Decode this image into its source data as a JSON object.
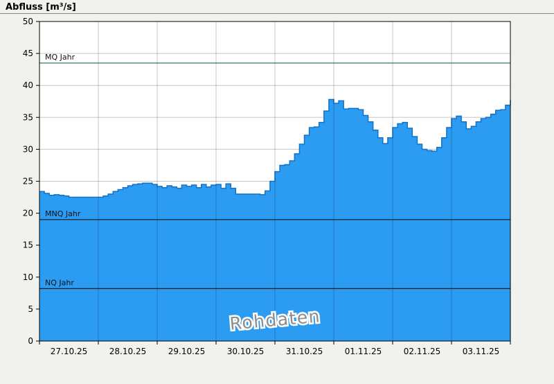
{
  "title": "Abfluss [m³/s]",
  "watermark": "Rohdaten",
  "chart_data": {
    "type": "area",
    "title": "Abfluss [m³/s]",
    "xlabel": "",
    "ylabel": "Abfluss [m³/s]",
    "ylim": [
      0,
      50
    ],
    "ytick_step": 5,
    "grid": true,
    "x_days": 8,
    "sample_interval_hours": 2,
    "categories": [
      "27.10.25",
      "28.10.25",
      "29.10.25",
      "30.10.25",
      "31.10.25",
      "01.11.25",
      "02.11.25",
      "03.11.25"
    ],
    "values": [
      23.4,
      23.1,
      22.8,
      22.9,
      22.8,
      22.7,
      22.5,
      22.5,
      22.5,
      22.5,
      22.5,
      22.5,
      22.5,
      22.7,
      23.0,
      23.4,
      23.7,
      24.0,
      24.3,
      24.5,
      24.6,
      24.7,
      24.7,
      24.5,
      24.2,
      24.0,
      24.3,
      24.1,
      23.9,
      24.4,
      24.2,
      24.4,
      24.0,
      24.5,
      24.1,
      24.4,
      24.5,
      23.9,
      24.6,
      23.9,
      23.0,
      23.0,
      23.0,
      23.0,
      23.0,
      22.9,
      23.5,
      25.0,
      26.5,
      27.5,
      27.6,
      28.2,
      29.3,
      30.8,
      32.2,
      33.4,
      33.5,
      34.2,
      36.0,
      37.8,
      37.2,
      37.6,
      36.3,
      36.4,
      36.4,
      36.2,
      35.3,
      34.3,
      33.0,
      31.8,
      30.9,
      31.8,
      33.4,
      34.0,
      34.2,
      33.3,
      32.0,
      30.8,
      30.0,
      29.8,
      29.7,
      30.3,
      31.8,
      33.4,
      34.8,
      35.2,
      34.3,
      33.2,
      33.6,
      34.3,
      34.8,
      35.0,
      35.5,
      36.1,
      36.2,
      36.9,
      37.7
    ],
    "reference_lines": [
      {
        "label": "MQ Jahr",
        "value": 43.5,
        "color": "#1b6e3c"
      },
      {
        "label": "MNQ Jahr",
        "value": 19.0,
        "color": "#1a1a1a"
      },
      {
        "label": "NQ Jahr",
        "value": 8.2,
        "color": "#1a1a1a"
      }
    ],
    "colors": {
      "fill": "#2b9cf2",
      "stroke": "#1272c8",
      "grid": "#c8c8c8",
      "frame": "#000000",
      "background": "#f1f1ed",
      "plot_background": "#ffffff"
    },
    "legend_position": "none"
  }
}
